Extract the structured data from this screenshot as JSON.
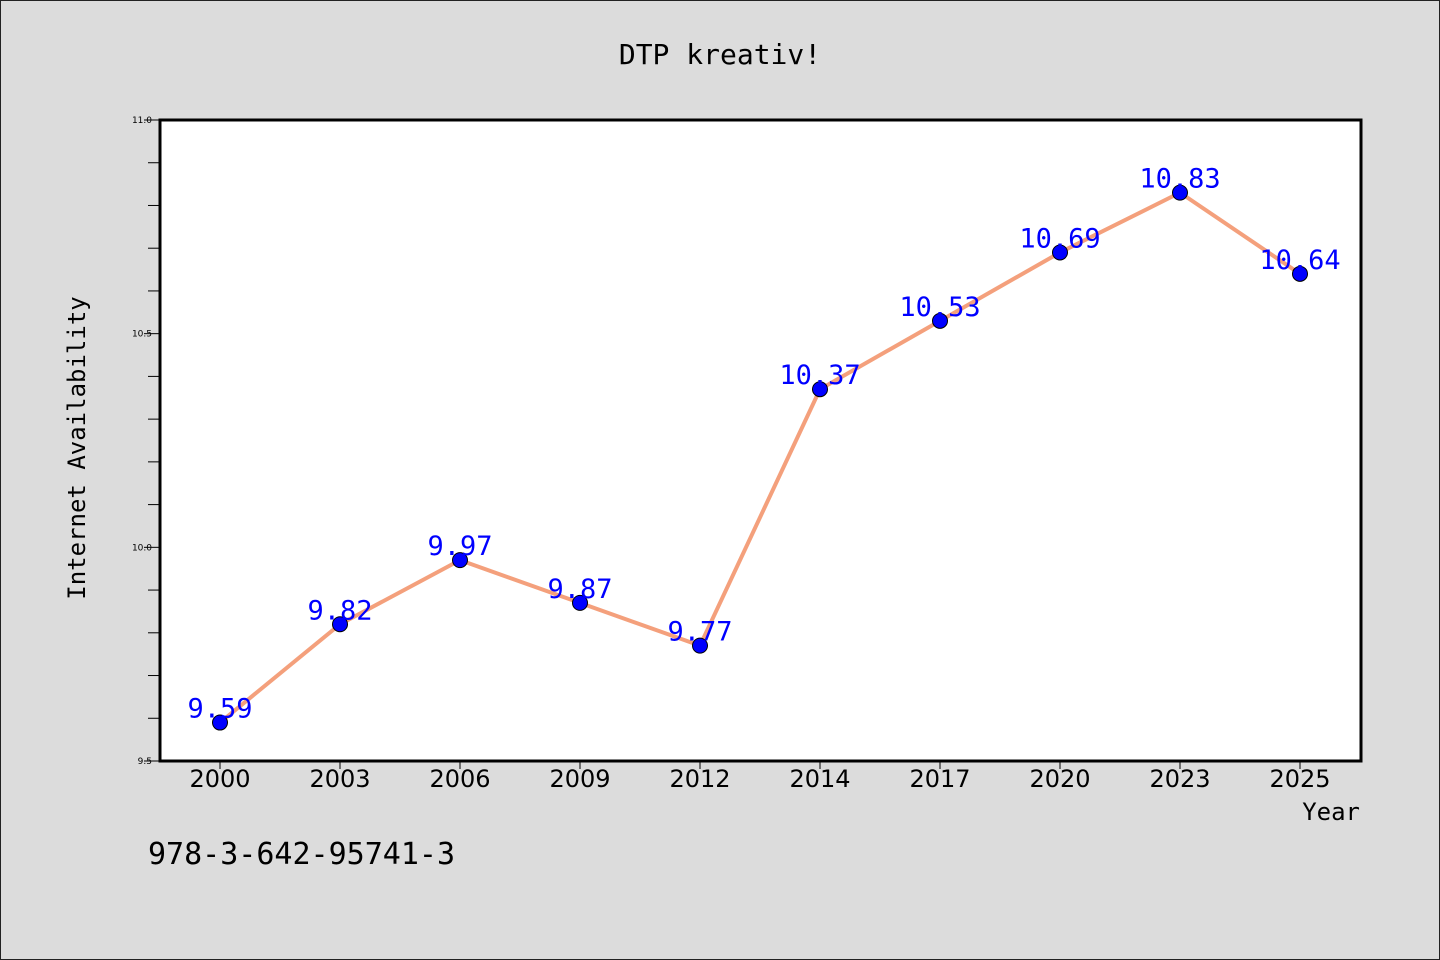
{
  "chart_data": {
    "type": "line",
    "title": "DTP kreativ!",
    "xlabel": "Year",
    "ylabel": "Internet Availability",
    "categories": [
      "2000",
      "2003",
      "2006",
      "2009",
      "2012",
      "2014",
      "2017",
      "2020",
      "2023",
      "2025"
    ],
    "series": [
      {
        "values": [
          9.59,
          9.82,
          9.97,
          9.87,
          9.77,
          10.37,
          10.53,
          10.69,
          10.83,
          10.64
        ],
        "line_color": "#f4a07c",
        "marker_color": "#0000ff"
      }
    ],
    "data_labels": [
      "9.59",
      "9.82",
      "9.97",
      "9.87",
      "9.77",
      "10.37",
      "10.53",
      "10.69",
      "10.83",
      "10.64"
    ],
    "ylim": [
      9.5,
      11.0
    ],
    "yticks": [
      "9.5",
      "10.0",
      "10.5",
      "11.0"
    ],
    "grid": false,
    "label_color": "#0000ff"
  },
  "footer": {
    "isbn": "978-3-642-95741-3"
  }
}
